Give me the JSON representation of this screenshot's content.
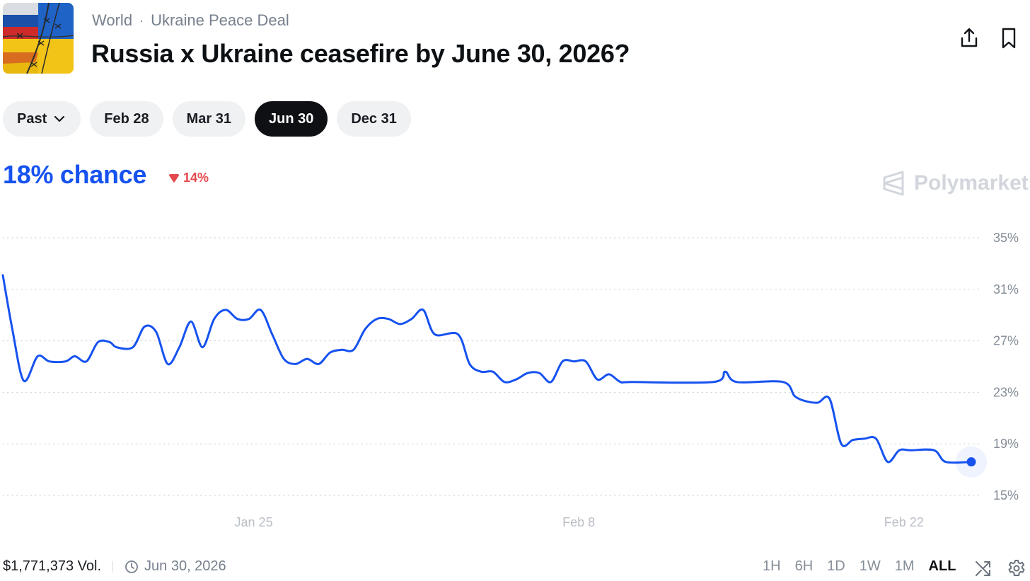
{
  "header": {
    "category": "World",
    "separator": "·",
    "subcategory": "Ukraine Peace Deal",
    "title": "Russia x Ukraine ceasefire by June 30, 2026?",
    "share_icon": "share-icon",
    "bookmark_icon": "bookmark-icon"
  },
  "tabs": [
    {
      "label": "Past",
      "dropdown": true
    },
    {
      "label": "Feb 28"
    },
    {
      "label": "Mar 31"
    },
    {
      "label": "Jun 30",
      "active": true
    },
    {
      "label": "Dec 31"
    }
  ],
  "summary": {
    "chance": "18% chance",
    "delta": "14%",
    "delta_direction": "down",
    "brand": "Polymarket"
  },
  "colors": {
    "line": "#1652f0",
    "down": "#e5484d",
    "active_tab": "#0e1013"
  },
  "chart_data": {
    "type": "line",
    "title": "",
    "xlabel": "",
    "ylabel": "",
    "y_unit": "%",
    "ylim": [
      15,
      35
    ],
    "yticks": [
      "35%",
      "31%",
      "27%",
      "23%",
      "19%",
      "15%"
    ],
    "ytick_values": [
      35,
      31,
      27,
      23,
      19,
      15
    ],
    "xticks": [
      "Jan 25",
      "Feb 8",
      "Feb 22"
    ],
    "xtick_values": [
      10.8,
      24.8,
      38.8
    ],
    "xlim": [
      0,
      41.7
    ],
    "grid": true,
    "series": [
      {
        "values": [
          [
            0.0,
            32.1
          ],
          [
            0.4,
            28
          ],
          [
            0.9,
            23.9
          ],
          [
            1.5,
            25.8
          ],
          [
            2.0,
            25.4
          ],
          [
            2.7,
            25.4
          ],
          [
            3.1,
            25.8
          ],
          [
            3.6,
            25.4
          ],
          [
            4.1,
            26.9
          ],
          [
            4.6,
            26.9
          ],
          [
            4.9,
            26.5
          ],
          [
            5.6,
            26.5
          ],
          [
            6.1,
            28.1
          ],
          [
            6.6,
            27.7
          ],
          [
            7.1,
            25.2
          ],
          [
            7.6,
            26.5
          ],
          [
            8.1,
            28.5
          ],
          [
            8.6,
            26.5
          ],
          [
            9.1,
            28.7
          ],
          [
            9.6,
            29.4
          ],
          [
            10.1,
            28.7
          ],
          [
            10.6,
            28.7
          ],
          [
            11.1,
            29.4
          ],
          [
            11.6,
            27.5
          ],
          [
            12.1,
            25.6
          ],
          [
            12.6,
            25.2
          ],
          [
            13.1,
            25.6
          ],
          [
            13.6,
            25.2
          ],
          [
            14.1,
            26.1
          ],
          [
            14.6,
            26.3
          ],
          [
            15.1,
            26.3
          ],
          [
            15.6,
            27.9
          ],
          [
            16.1,
            28.7
          ],
          [
            16.6,
            28.7
          ],
          [
            17.1,
            28.3
          ],
          [
            17.6,
            28.7
          ],
          [
            18.1,
            29.4
          ],
          [
            18.6,
            27.5
          ],
          [
            19.6,
            27.5
          ],
          [
            20.1,
            25.2
          ],
          [
            20.6,
            24.6
          ],
          [
            21.1,
            24.6
          ],
          [
            21.6,
            23.8
          ],
          [
            22.1,
            24.0
          ],
          [
            22.6,
            24.5
          ],
          [
            23.1,
            24.5
          ],
          [
            23.6,
            23.8
          ],
          [
            24.1,
            25.4
          ],
          [
            24.6,
            25.4
          ],
          [
            25.1,
            25.4
          ],
          [
            25.6,
            24.0
          ],
          [
            26.1,
            24.4
          ],
          [
            26.6,
            23.8
          ],
          [
            27.1,
            23.8
          ],
          [
            30.6,
            23.8
          ],
          [
            31.1,
            24.6
          ],
          [
            31.6,
            23.8
          ],
          [
            33.6,
            23.8
          ],
          [
            34.1,
            22.7
          ],
          [
            34.6,
            22.3
          ],
          [
            35.1,
            22.2
          ],
          [
            35.6,
            22.5
          ],
          [
            36.1,
            19.0
          ],
          [
            36.6,
            19.3
          ],
          [
            37.1,
            19.4
          ],
          [
            37.6,
            19.4
          ],
          [
            38.1,
            17.6
          ],
          [
            38.6,
            18.5
          ],
          [
            39.1,
            18.5
          ],
          [
            40.1,
            18.5
          ],
          [
            40.6,
            17.6
          ],
          [
            41.7,
            17.6
          ]
        ]
      }
    ]
  },
  "footer": {
    "volume": "$1,771,373 Vol.",
    "end_date": "Jun 30, 2026",
    "clock_icon": "clock-icon",
    "ranges": [
      {
        "label": "1H"
      },
      {
        "label": "6H"
      },
      {
        "label": "1D"
      },
      {
        "label": "1W"
      },
      {
        "label": "1M"
      },
      {
        "label": "ALL",
        "active": true
      }
    ],
    "shuffle_icon": "shuffle-icon",
    "settings_icon": "gear-icon"
  }
}
